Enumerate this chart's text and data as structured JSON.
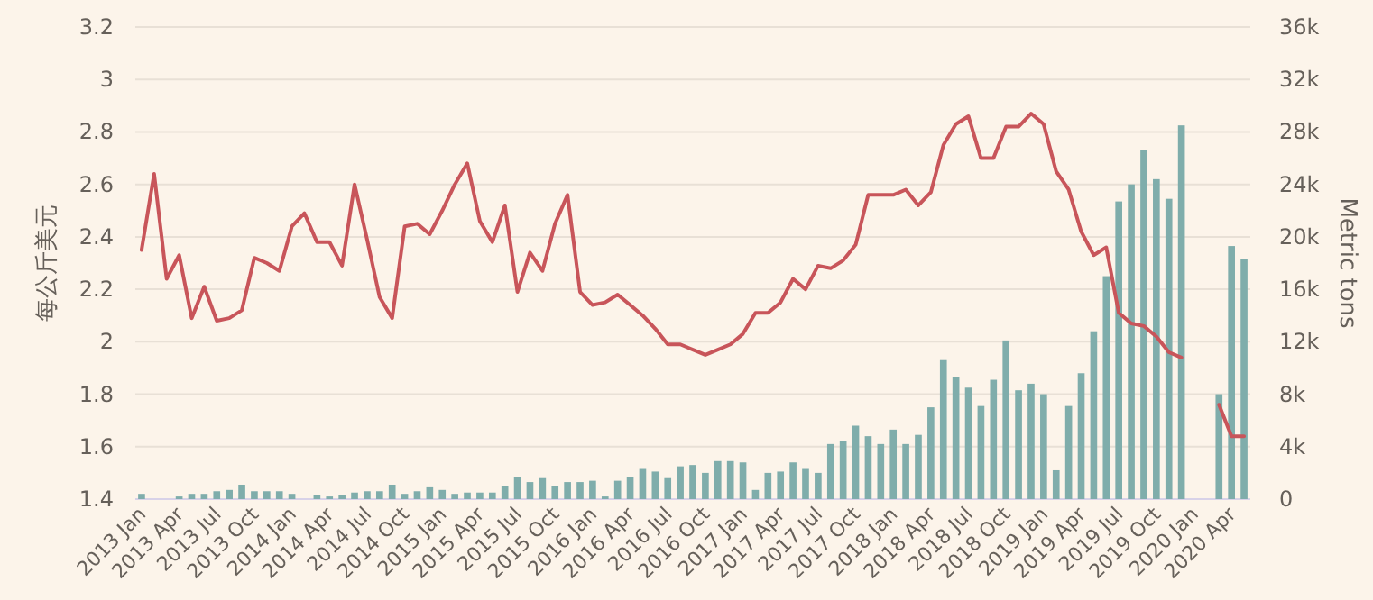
{
  "chart_data": {
    "type": "bar",
    "ylabel": "每公斤美元",
    "y2label": "Metric tons",
    "categories": [
      "2013 Jan",
      null,
      null,
      "2013 Apr",
      null,
      null,
      "2013 Jul",
      null,
      null,
      "2013 Oct",
      null,
      null,
      "2014 Jan",
      null,
      null,
      "2014 Apr",
      null,
      null,
      "2014 Jul",
      null,
      null,
      "2014 Oct",
      null,
      null,
      "2015 Jan",
      null,
      null,
      "2015 Apr",
      null,
      null,
      "2015 Jul",
      null,
      null,
      "2015 Oct",
      null,
      null,
      "2016 Jan",
      null,
      null,
      "2016 Apr",
      null,
      null,
      "2016 Jul",
      null,
      null,
      "2016 Oct",
      null,
      null,
      "2017 Jan",
      null,
      null,
      "2017 Apr",
      null,
      null,
      "2017 Jul",
      null,
      null,
      "2017 Oct",
      null,
      null,
      "2018 Jan",
      null,
      null,
      "2018 Apr",
      null,
      null,
      "2018 Jul",
      null,
      null,
      "2018 Oct",
      null,
      null,
      "2019 Jan",
      null,
      null,
      "2019 Apr",
      null,
      null,
      "2019 Jul",
      null,
      null,
      "2019 Oct",
      null,
      null,
      "2020 Jan",
      null,
      null,
      "2020 Apr",
      null
    ],
    "series": [
      {
        "axis": "y2",
        "color": "#7fadab",
        "values": [
          400,
          null,
          null,
          200,
          400,
          400,
          600,
          700,
          1100,
          600,
          600,
          600,
          400,
          null,
          300,
          200,
          300,
          500,
          600,
          600,
          1100,
          400,
          600,
          900,
          700,
          400,
          500,
          500,
          500,
          1000,
          1700,
          1300,
          1600,
          1000,
          1300,
          1300,
          1400,
          200,
          1400,
          1700,
          2300,
          2100,
          1600,
          2500,
          2600,
          2000,
          2900,
          2900,
          2800,
          700,
          2000,
          2100,
          2800,
          2300,
          2000,
          4200,
          4400,
          5600,
          4800,
          4200,
          5300,
          4200,
          4900,
          7000,
          10600,
          9300,
          8500,
          7100,
          9100,
          12100,
          8300,
          8800,
          8000,
          2200,
          7100,
          9600,
          12800,
          17000,
          22700,
          24000,
          26600,
          24400,
          22900,
          28500,
          null,
          null,
          8000,
          19300,
          18300
        ]
      },
      {
        "type": "line",
        "axis": "y",
        "color": "#c8555a",
        "values": [
          2.35,
          2.64,
          2.24,
          2.33,
          2.09,
          2.21,
          2.08,
          2.09,
          2.12,
          2.32,
          2.3,
          2.27,
          2.44,
          2.49,
          2.38,
          2.38,
          2.29,
          2.6,
          2.39,
          2.17,
          2.09,
          2.44,
          2.45,
          2.41,
          2.5,
          2.6,
          2.68,
          2.46,
          2.38,
          2.52,
          2.19,
          2.34,
          2.27,
          2.45,
          2.56,
          2.19,
          2.14,
          2.15,
          2.18,
          2.14,
          2.1,
          2.05,
          1.99,
          1.99,
          1.97,
          1.95,
          1.97,
          1.99,
          2.03,
          2.11,
          2.11,
          2.15,
          2.24,
          2.2,
          2.29,
          2.28,
          2.31,
          2.37,
          2.56,
          2.56,
          2.56,
          2.58,
          2.52,
          2.57,
          2.75,
          2.83,
          2.86,
          2.7,
          2.7,
          2.82,
          2.82,
          2.87,
          2.83,
          2.65,
          2.58,
          2.42,
          2.33,
          2.36,
          2.11,
          2.07,
          2.06,
          2.02,
          1.96,
          1.94,
          null,
          null,
          1.76,
          1.64,
          1.64
        ]
      }
    ],
    "ylim": [
      1.4,
      3.2
    ],
    "yticks": [
      1.4,
      1.6,
      1.8,
      2,
      2.2,
      2.4,
      2.6,
      2.8,
      3,
      3.2
    ],
    "y2lim": [
      0,
      36000
    ],
    "y2ticks": [
      {
        "value": 0,
        "label": "0"
      },
      {
        "value": 4000,
        "label": "4k"
      },
      {
        "value": 8000,
        "label": "8k"
      },
      {
        "value": 12000,
        "label": "12k"
      },
      {
        "value": 16000,
        "label": "16k"
      },
      {
        "value": 20000,
        "label": "20k"
      },
      {
        "value": 24000,
        "label": "24k"
      },
      {
        "value": 28000,
        "label": "28k"
      },
      {
        "value": 32000,
        "label": "32k"
      },
      {
        "value": 36000,
        "label": "36k"
      }
    ],
    "grid": "y",
    "marker": "none",
    "line_style": "solid"
  }
}
